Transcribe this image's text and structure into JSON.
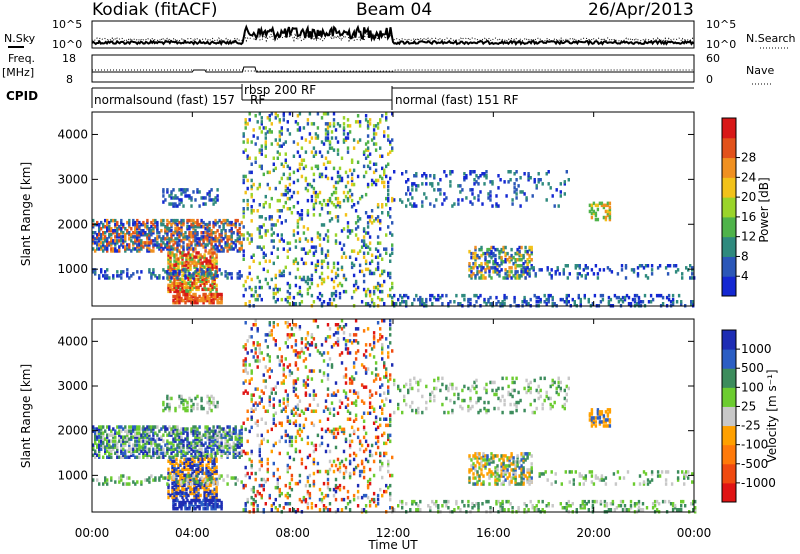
{
  "chart_data": {
    "type": "heatmap",
    "title": "Kodiak (fitACF)",
    "beam": "Beam 04",
    "date": "26/Apr/2013",
    "xlabel": "Time UT",
    "x_ticks": [
      "00:00",
      "04:00",
      "08:00",
      "12:00",
      "16:00",
      "20:00",
      "00:00"
    ],
    "xlim_hours": [
      0,
      24
    ],
    "ylabel": "Slant Range [km]",
    "y_ticks": [
      "1000",
      "2000",
      "3000",
      "4000"
    ],
    "ylim_km": [
      180,
      4500
    ],
    "noise_panel": {
      "left_label": "N.Sky",
      "right_label": "N.Search",
      "left_ticks": [
        "10^5",
        "10^0"
      ],
      "right_ticks": [
        "10^5",
        "10^0"
      ]
    },
    "freq_panel": {
      "left_label_1": "Freq.",
      "left_label_2": "[MHz]",
      "right_label": "Nave",
      "left_ticks": [
        "18",
        "8"
      ],
      "right_ticks": [
        "60",
        "0"
      ]
    },
    "cpid": {
      "label": "CPID",
      "segments": [
        {
          "name": "normalsound (fast) 157",
          "start": 0,
          "end": 6
        },
        {
          "name": "rbsp 200 RF",
          "start": 6,
          "end": 12
        },
        {
          "name": "normal (fast) 151 RF",
          "start": 12,
          "end": 24
        }
      ],
      "overlap_text": "RF"
    },
    "power_panel": {
      "colorbar_label": "Power [dB]",
      "colorbar_ticks": [
        "4",
        "8",
        "12",
        "16",
        "20",
        "24",
        "28"
      ],
      "colors": [
        "#1428d2",
        "#2b57b8",
        "#2f8a7e",
        "#4fb34a",
        "#9ad42a",
        "#f2c21a",
        "#f09020",
        "#e2521b",
        "#d81818"
      ]
    },
    "velocity_panel": {
      "colorbar_label": "Velocity [m s⁻¹]",
      "colorbar_ticks": [
        "1000",
        "500",
        "100",
        "25",
        "-25",
        "-100",
        "-500",
        "-1000"
      ],
      "colors": [
        "#1e2db4",
        "#2b5ec4",
        "#3c8c5c",
        "#6ccc30",
        "#c8c8c8",
        "#ffa000",
        "#ff7a0a",
        "#f04a10",
        "#e01414"
      ]
    }
  }
}
